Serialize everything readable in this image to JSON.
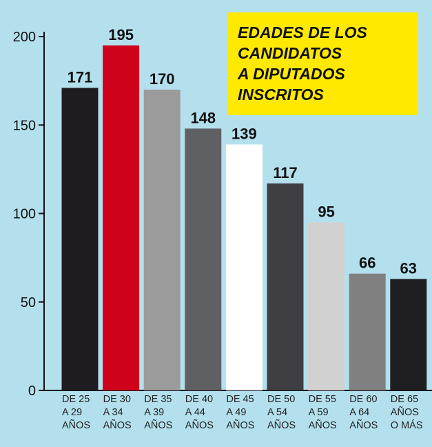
{
  "chart_data": {
    "type": "bar",
    "title": "EDADES DE LOS\nCANDIDATOS\nA DIPUTADOS\nINSCRITOS",
    "categories": [
      "DE 25\nA 29\nAÑOS",
      "DE 30\nA 34\nAÑOS",
      "DE 35\nA 39\nAÑOS",
      "DE 40\nA 44\nAÑOS",
      "DE 45\nA 49\nAÑOS",
      "DE 50\nA 54\nAÑOS",
      "DE 55\nA 59\nAÑOS",
      "DE 60\nA 64\nAÑOS",
      "DE 65\nAÑOS\nO MÁS"
    ],
    "values": [
      171,
      195,
      170,
      148,
      139,
      117,
      95,
      66,
      63
    ],
    "colors": [
      "#1e1c20",
      "#d0021b",
      "#9b9b9b",
      "#5f6063",
      "#ffffff",
      "#3f3f43",
      "#d1d1d1",
      "#808080",
      "#1f1e22"
    ],
    "ylim": [
      0,
      200
    ],
    "yticks": [
      0,
      50,
      100,
      150,
      200
    ]
  }
}
